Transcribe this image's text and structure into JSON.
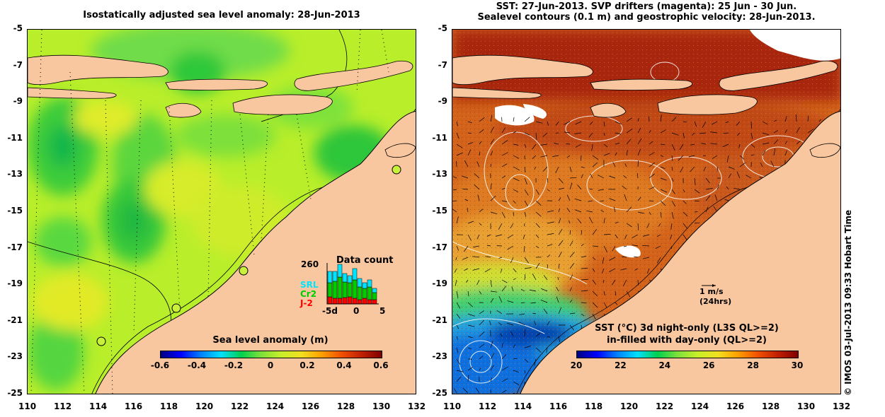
{
  "left": {
    "title": "Isostatically adjusted sea level anomaly: 28-Jun-2013",
    "colorbar": {
      "label": "Sea level anomaly (m)",
      "ticks": [
        "-0.6",
        "-0.4",
        "-0.2",
        "0",
        "0.2",
        "0.4",
        "0.6"
      ],
      "range": [
        -0.6,
        0.6
      ]
    },
    "data_count": {
      "title": "Data count",
      "max_label": "260",
      "series": [
        {
          "name": "SRL",
          "color": "#00e5ff"
        },
        {
          "name": "Cr2",
          "color": "#00cc00"
        },
        {
          "name": "J-2",
          "color": "#ff0000"
        }
      ],
      "x_ticks": [
        "-5d",
        "0",
        "5"
      ]
    },
    "x_ticks": [
      "110",
      "112",
      "114",
      "116",
      "118",
      "120",
      "122",
      "124",
      "126",
      "128",
      "130",
      "132"
    ],
    "y_ticks": [
      "-5",
      "-7",
      "-9",
      "-11",
      "-13",
      "-15",
      "-17",
      "-19",
      "-21",
      "-23",
      "-25"
    ]
  },
  "right": {
    "title_line1": "SST: 27-Jun-2013. SVP drifters (magenta): 25 Jun - 30 Jun.",
    "title_line2": "Sealevel contours (0.1 m) and geostrophic velocity: 28-Jun-2013.",
    "velocity_scale": {
      "line1": "1 m/s",
      "line2": "(24hrs)"
    },
    "colorbar": {
      "label_line1": "SST (°C)  3d night-only (L3S QL>=2)",
      "label_line2": "in-filled with day-only (QL>=2)",
      "ticks": [
        "20",
        "22",
        "24",
        "26",
        "28",
        "30"
      ],
      "range": [
        20,
        30
      ]
    },
    "x_ticks": [
      "110",
      "112",
      "114",
      "116",
      "118",
      "120",
      "122",
      "124",
      "126",
      "128",
      "130",
      "132"
    ],
    "y_ticks": [
      "-5",
      "-7",
      "-9",
      "-11",
      "-13",
      "-15",
      "-17",
      "-19",
      "-21",
      "-23",
      "-25"
    ]
  },
  "credit": "© IMOS 03-Jul-2013 09:33 Hobart Time",
  "colors": {
    "land": "#f9c79f",
    "sla_background": "#b8ee2a",
    "sst_background": "#d3631b"
  }
}
